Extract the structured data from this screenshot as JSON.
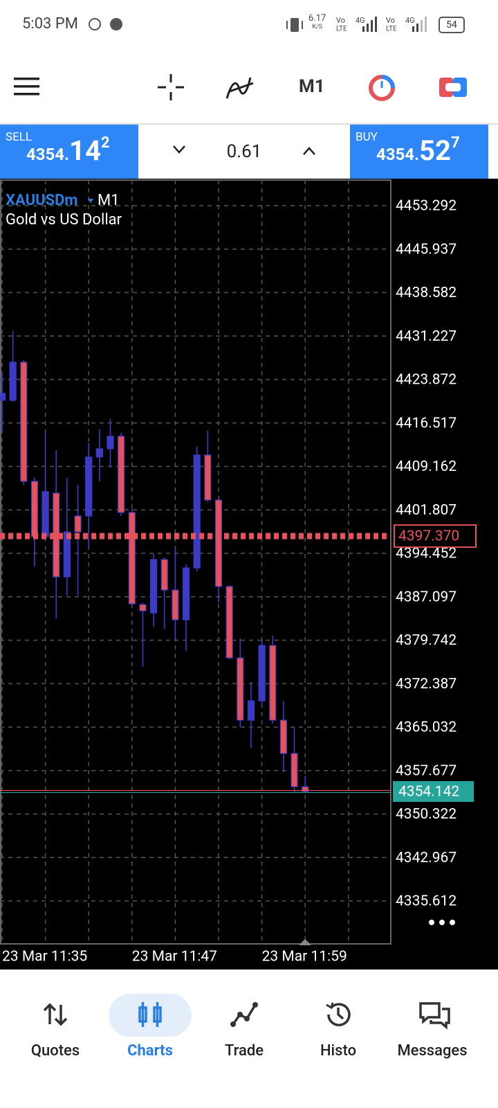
{
  "status_bar": {
    "time": "5:03 PM",
    "speed": "6.17",
    "speed_unit": "K/S",
    "battery": "54"
  },
  "toolbar": {
    "timeframe": "M1"
  },
  "trade_panel": {
    "sell_label": "SELL",
    "sell_price": [
      "4354.",
      "14",
      "2"
    ],
    "volume": "0.61",
    "buy_label": "BUY",
    "buy_price": [
      "4354.",
      "52",
      "7"
    ]
  },
  "chart_header": {
    "symbol": "XAUUSDm",
    "timeframe": "M1",
    "description": "Gold vs US Dollar"
  },
  "chart_data": {
    "type": "candlestick",
    "categories": [
      "23 Mar 11:35",
      null,
      null,
      null,
      null,
      null,
      null,
      null,
      null,
      null,
      null,
      null,
      "23 Mar 11:47",
      null,
      null,
      null,
      null,
      null,
      null,
      null,
      null,
      null,
      null,
      null,
      "23 Mar 11:59",
      null,
      null,
      null,
      null
    ],
    "open": [
      4420.36,
      4420.36,
      4426.8,
      4406.64,
      4397.27,
      4404.65,
      4390.47,
      4400.78,
      4400.78,
      4410.75,
      4412.15,
      4414.26,
      4401.37,
      4385.78,
      4384.37,
      4393.4,
      4388.24,
      4383.2,
      4391.99,
      4411.1,
      4403.48,
      4388.83,
      4376.75,
      4366.21,
      4369.49,
      4378.86,
      4366.21,
      4360.58,
      4354.95
    ],
    "high": [
      4424.81,
      4432.08,
      4427.15,
      4407.23,
      4414.85,
      4411.92,
      4407.23,
      4406.06,
      4413.09,
      4415.43,
      4417.19,
      4414.85,
      4401.95,
      4386.13,
      4394.34,
      4393.75,
      4395.51,
      4392.58,
      4412.5,
      4415.2,
      4403.71,
      4389.06,
      4380.04,
      4372.65,
      4379.68,
      4380.51,
      4369.49,
      4365.03,
      4356.83
    ],
    "low": [
      4414.85,
      4420.12,
      4406.06,
      4392.23,
      4397.27,
      4383.44,
      4387.3,
      4387.3,
      4395.51,
      4406.64,
      4408.99,
      4400.78,
      4385.55,
      4375.23,
      4382.03,
      4381.68,
      4379.68,
      4377.93,
      4391.41,
      4403.13,
      4386.13,
      4376.52,
      4365.03,
      4361.52,
      4368.55,
      4365.62,
      4357.41,
      4353.9,
      4353.9
    ],
    "close": [
      4421.53,
      4426.8,
      4406.64,
      4397.27,
      4404.88,
      4390.47,
      4398.09,
      4398.09,
      4410.75,
      4412.15,
      4414.26,
      4401.37,
      4385.9,
      4384.72,
      4393.4,
      4388.24,
      4383.2,
      4391.99,
      4411.1,
      4403.48,
      4388.83,
      4376.75,
      4366.21,
      4369.49,
      4378.86,
      4366.21,
      4360.58,
      4354.95,
      4354.14
    ],
    "up_color": "#3b3bc4",
    "down_color": "#e5525a",
    "ylim": [
      4328.35,
      4457.63
    ],
    "yticks": [
      4453.292,
      4445.937,
      4438.582,
      4431.227,
      4423.872,
      4416.517,
      4409.162,
      4401.807,
      4394.452,
      4387.097,
      4379.742,
      4372.387,
      4365.032,
      4357.677,
      4350.322,
      4342.967,
      4335.612
    ],
    "grid": true,
    "price_lines": [
      {
        "value": 4397.37,
        "label": "4397.370",
        "color": "#e5525a"
      },
      {
        "value": 4354.142,
        "label": "4354.142",
        "color": "#26a69a"
      }
    ]
  },
  "nav": {
    "items": [
      "Quotes",
      "Charts",
      "Trade",
      "Histo",
      "Messages"
    ]
  }
}
